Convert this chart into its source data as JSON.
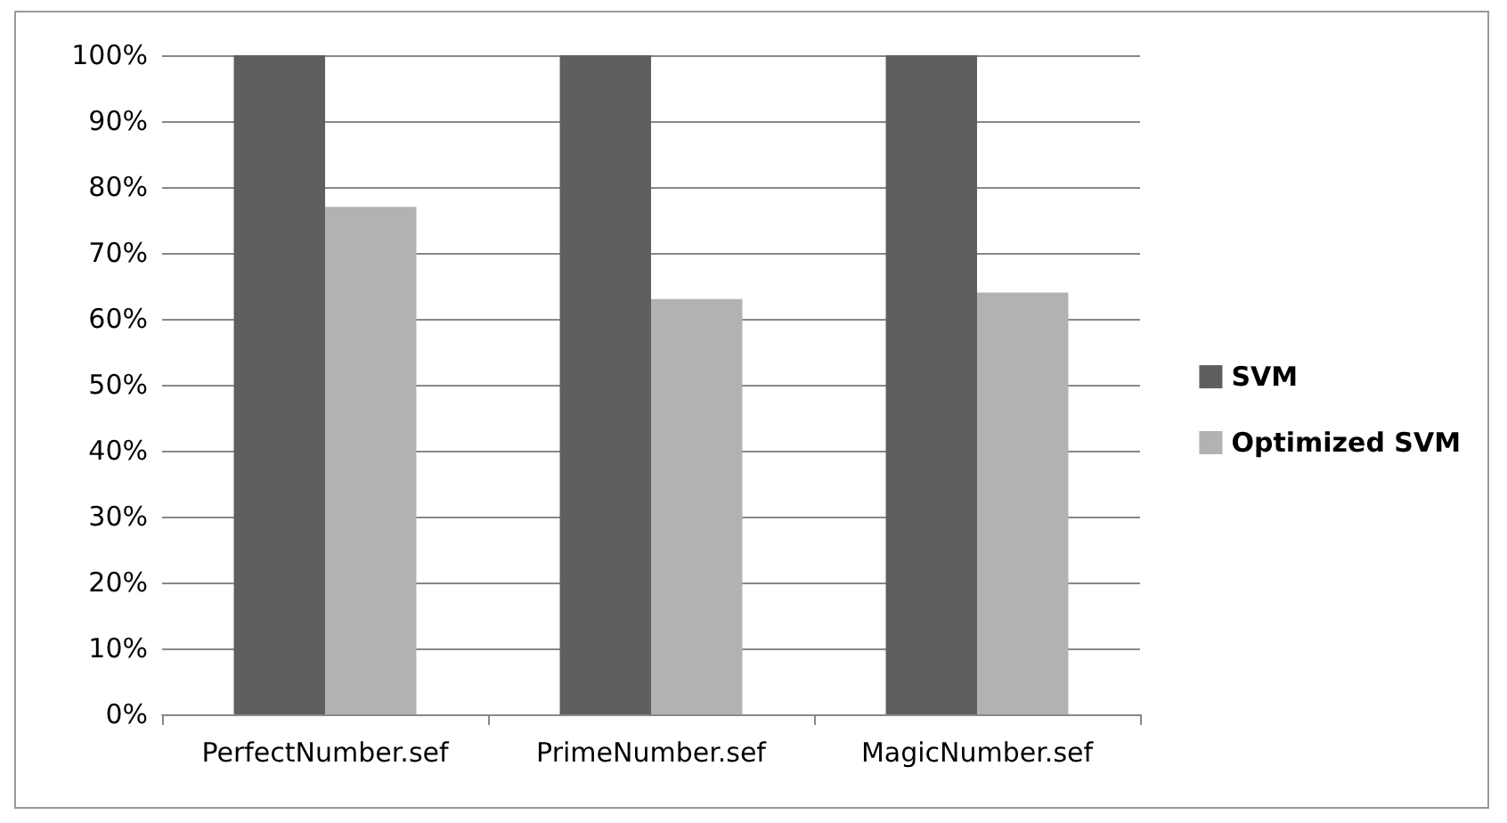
{
  "chart_data": {
    "type": "bar",
    "categories": [
      "PerfectNumber.sef",
      "PrimeNumber.sef",
      "MagicNumber.sef"
    ],
    "series": [
      {
        "name": "SVM",
        "color": "#5f5f5f",
        "values": [
          100,
          100,
          100
        ]
      },
      {
        "name": "Optimized SVM",
        "color": "#b2b2b2",
        "values": [
          77,
          63,
          64
        ]
      }
    ],
    "ylim": [
      0,
      100
    ],
    "yticks": [
      {
        "value": 0,
        "label": "0%"
      },
      {
        "value": 10,
        "label": "10%"
      },
      {
        "value": 20,
        "label": "20%"
      },
      {
        "value": 30,
        "label": "30%"
      },
      {
        "value": 40,
        "label": "40%"
      },
      {
        "value": 50,
        "label": "50%"
      },
      {
        "value": 60,
        "label": "60%"
      },
      {
        "value": 70,
        "label": "70%"
      },
      {
        "value": 80,
        "label": "80%"
      },
      {
        "value": 90,
        "label": "90%"
      },
      {
        "value": 100,
        "label": "100%"
      }
    ],
    "grid": "y",
    "legend": "right"
  }
}
